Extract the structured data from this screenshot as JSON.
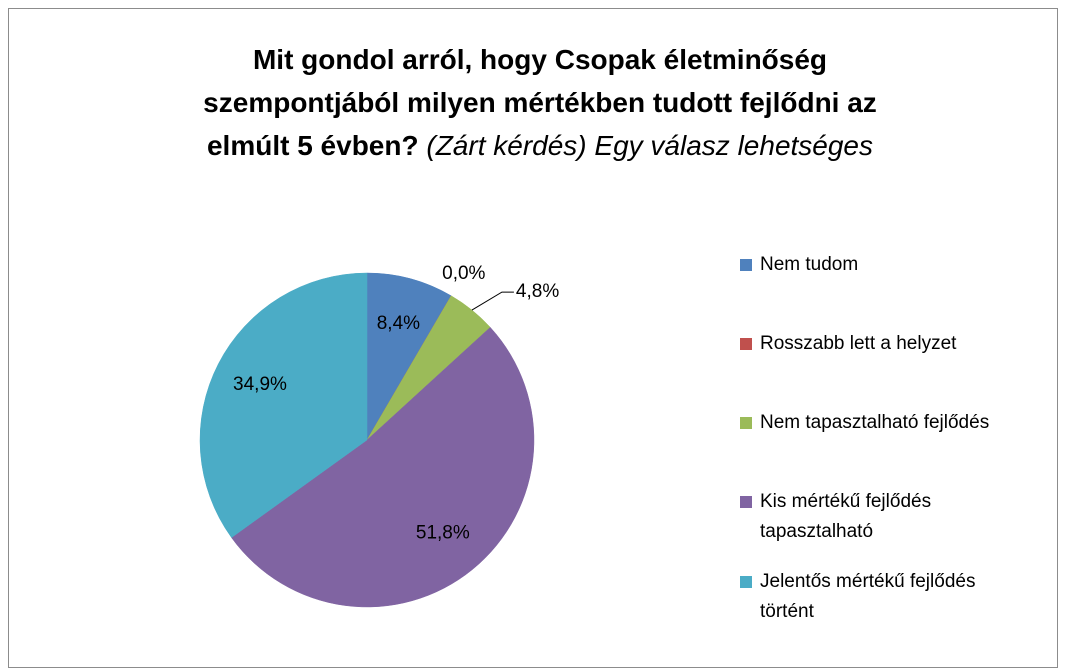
{
  "chart_data": {
    "type": "pie",
    "title": "Mit gondol arról, hogy Csopak életminőség szempontjából milyen mértékben tudott fejlődni az elmúlt 5 évben?",
    "subtitle": "(Zárt kérdés) Egy válasz lehetséges",
    "categories": [
      "Nem tudom",
      "Rosszabb lett a helyzet",
      "Nem tapasztalható fejlődés",
      "Kis mértékű fejlődés tapasztalható",
      "Jelentős mértékű fejlődés történt"
    ],
    "values": [
      8.4,
      0.0,
      4.8,
      51.8,
      34.9
    ],
    "value_labels": [
      "8,4%",
      "0,0%",
      "4,8%",
      "51,8%",
      "34,9%"
    ],
    "colors": [
      "#4f81bd",
      "#c0504d",
      "#9bbb59",
      "#8064a2",
      "#4bacc6"
    ],
    "legend": "right"
  }
}
